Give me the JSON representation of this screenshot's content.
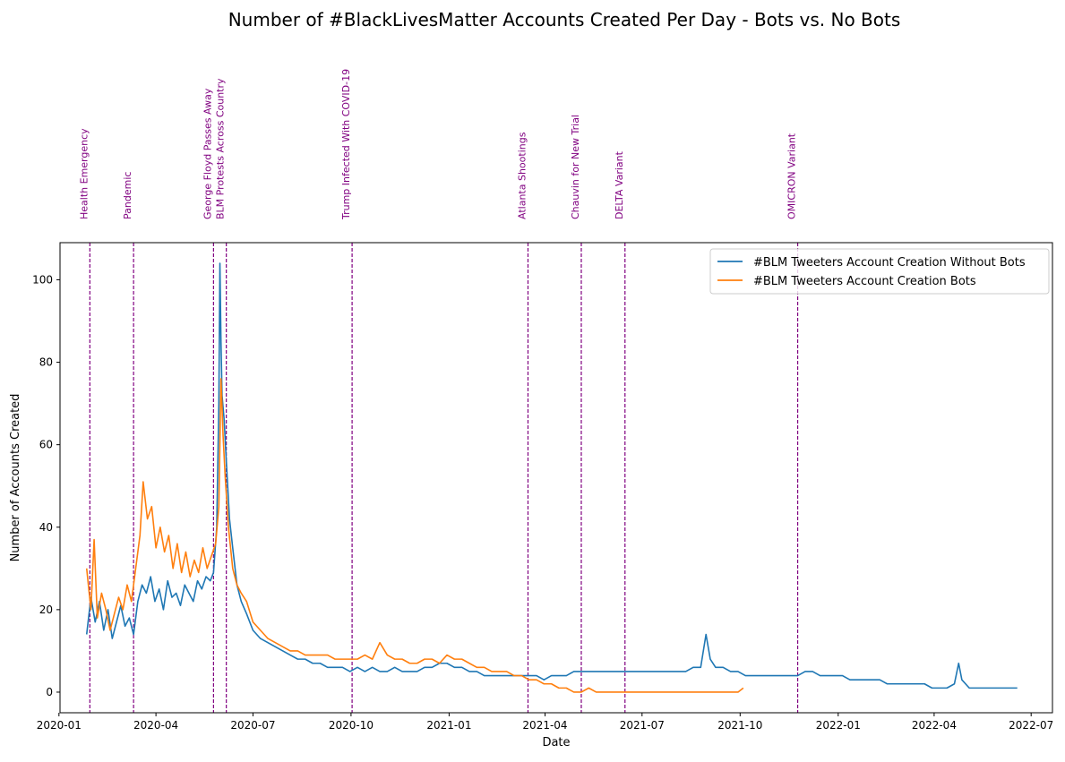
{
  "chart_data": {
    "type": "line",
    "title": "Number of #BlackLivesMatter Accounts Created Per Day - Bots vs. No Bots",
    "xlabel": "Date",
    "ylabel": "Number of Accounts Created",
    "xlim": [
      "2020-01-02",
      "2022-07-21"
    ],
    "ylim": [
      -5,
      109
    ],
    "x_ticks": [
      "2020-01",
      "2020-04",
      "2020-07",
      "2020-10",
      "2021-01",
      "2021-04",
      "2021-07",
      "2021-10",
      "2022-01",
      "2022-04",
      "2022-07"
    ],
    "y_ticks": [
      0,
      20,
      40,
      60,
      80,
      100
    ],
    "grid": false,
    "legend_position": "upper right",
    "events": [
      {
        "date": "2020-01-30",
        "lines": [
          "Health Emergency"
        ]
      },
      {
        "date": "2020-03-11",
        "lines": [
          "Pandemic"
        ]
      },
      {
        "date": "2020-05-25",
        "lines": [
          "George Floyd Passes Away"
        ]
      },
      {
        "date": "2020-06-06",
        "lines": [
          "BLM Protests Across Country"
        ]
      },
      {
        "date": "2020-10-02",
        "lines": [
          "Trump Infected With COVID-19"
        ]
      },
      {
        "date": "2021-03-16",
        "lines": [
          "Atlanta Shootings"
        ]
      },
      {
        "date": "2021-05-05",
        "lines": [
          "Chauvin for New Trial"
        ]
      },
      {
        "date": "2021-06-15",
        "lines": [
          "DELTA Variant"
        ]
      },
      {
        "date": "2021-11-24",
        "lines": [
          "OMICRON Variant"
        ]
      }
    ],
    "series": [
      {
        "name": "#BLM Tweeters Account Creation Without Bots",
        "color": "#1f77b4",
        "points": [
          [
            "2020-01-27",
            14
          ],
          [
            "2020-01-31",
            23
          ],
          [
            "2020-02-04",
            17
          ],
          [
            "2020-02-08",
            22
          ],
          [
            "2020-02-12",
            15
          ],
          [
            "2020-02-16",
            20
          ],
          [
            "2020-02-20",
            13
          ],
          [
            "2020-02-24",
            17
          ],
          [
            "2020-02-28",
            21
          ],
          [
            "2020-03-03",
            16
          ],
          [
            "2020-03-07",
            18
          ],
          [
            "2020-03-11",
            14
          ],
          [
            "2020-03-15",
            22
          ],
          [
            "2020-03-19",
            26
          ],
          [
            "2020-03-23",
            24
          ],
          [
            "2020-03-27",
            28
          ],
          [
            "2020-03-31",
            22
          ],
          [
            "2020-04-04",
            25
          ],
          [
            "2020-04-08",
            20
          ],
          [
            "2020-04-12",
            27
          ],
          [
            "2020-04-16",
            23
          ],
          [
            "2020-04-20",
            24
          ],
          [
            "2020-04-24",
            21
          ],
          [
            "2020-04-28",
            26
          ],
          [
            "2020-05-02",
            24
          ],
          [
            "2020-05-06",
            22
          ],
          [
            "2020-05-10",
            27
          ],
          [
            "2020-05-14",
            25
          ],
          [
            "2020-05-18",
            28
          ],
          [
            "2020-05-22",
            27
          ],
          [
            "2020-05-25",
            29
          ],
          [
            "2020-05-28",
            40
          ],
          [
            "2020-05-30",
            70
          ],
          [
            "2020-05-31",
            104
          ],
          [
            "2020-06-01",
            85
          ],
          [
            "2020-06-02",
            72
          ],
          [
            "2020-06-04",
            66
          ],
          [
            "2020-06-06",
            56
          ],
          [
            "2020-06-09",
            42
          ],
          [
            "2020-06-12",
            35
          ],
          [
            "2020-06-16",
            26
          ],
          [
            "2020-06-20",
            22
          ],
          [
            "2020-06-25",
            19
          ],
          [
            "2020-07-01",
            15
          ],
          [
            "2020-07-08",
            13
          ],
          [
            "2020-07-15",
            12
          ],
          [
            "2020-07-22",
            11
          ],
          [
            "2020-07-29",
            10
          ],
          [
            "2020-08-05",
            9
          ],
          [
            "2020-08-12",
            8
          ],
          [
            "2020-08-19",
            8
          ],
          [
            "2020-08-26",
            7
          ],
          [
            "2020-09-02",
            7
          ],
          [
            "2020-09-09",
            6
          ],
          [
            "2020-09-16",
            6
          ],
          [
            "2020-09-23",
            6
          ],
          [
            "2020-09-30",
            5
          ],
          [
            "2020-10-07",
            6
          ],
          [
            "2020-10-14",
            5
          ],
          [
            "2020-10-21",
            6
          ],
          [
            "2020-10-28",
            5
          ],
          [
            "2020-11-04",
            5
          ],
          [
            "2020-11-11",
            6
          ],
          [
            "2020-11-18",
            5
          ],
          [
            "2020-11-25",
            5
          ],
          [
            "2020-12-02",
            5
          ],
          [
            "2020-12-09",
            6
          ],
          [
            "2020-12-16",
            6
          ],
          [
            "2020-12-23",
            7
          ],
          [
            "2020-12-30",
            7
          ],
          [
            "2021-01-06",
            6
          ],
          [
            "2021-01-13",
            6
          ],
          [
            "2021-01-20",
            5
          ],
          [
            "2021-01-27",
            5
          ],
          [
            "2021-02-03",
            4
          ],
          [
            "2021-02-10",
            4
          ],
          [
            "2021-02-17",
            4
          ],
          [
            "2021-02-24",
            4
          ],
          [
            "2021-03-03",
            4
          ],
          [
            "2021-03-10",
            4
          ],
          [
            "2021-03-17",
            4
          ],
          [
            "2021-03-24",
            4
          ],
          [
            "2021-03-31",
            3
          ],
          [
            "2021-04-07",
            4
          ],
          [
            "2021-04-14",
            4
          ],
          [
            "2021-04-21",
            4
          ],
          [
            "2021-04-28",
            5
          ],
          [
            "2021-05-05",
            5
          ],
          [
            "2021-05-12",
            5
          ],
          [
            "2021-05-19",
            5
          ],
          [
            "2021-05-26",
            5
          ],
          [
            "2021-06-02",
            5
          ],
          [
            "2021-06-09",
            5
          ],
          [
            "2021-06-16",
            5
          ],
          [
            "2021-06-23",
            5
          ],
          [
            "2021-06-30",
            5
          ],
          [
            "2021-07-07",
            5
          ],
          [
            "2021-07-14",
            5
          ],
          [
            "2021-07-21",
            5
          ],
          [
            "2021-07-28",
            5
          ],
          [
            "2021-08-04",
            5
          ],
          [
            "2021-08-11",
            5
          ],
          [
            "2021-08-18",
            6
          ],
          [
            "2021-08-25",
            6
          ],
          [
            "2021-08-30",
            14
          ],
          [
            "2021-09-03",
            8
          ],
          [
            "2021-09-08",
            6
          ],
          [
            "2021-09-15",
            6
          ],
          [
            "2021-09-22",
            5
          ],
          [
            "2021-09-29",
            5
          ],
          [
            "2021-10-06",
            4
          ],
          [
            "2021-10-13",
            4
          ],
          [
            "2021-10-20",
            4
          ],
          [
            "2021-10-27",
            4
          ],
          [
            "2021-11-03",
            4
          ],
          [
            "2021-11-10",
            4
          ],
          [
            "2021-11-17",
            4
          ],
          [
            "2021-11-24",
            4
          ],
          [
            "2021-12-01",
            5
          ],
          [
            "2021-12-08",
            5
          ],
          [
            "2021-12-15",
            4
          ],
          [
            "2021-12-22",
            4
          ],
          [
            "2021-12-29",
            4
          ],
          [
            "2022-01-05",
            4
          ],
          [
            "2022-01-12",
            3
          ],
          [
            "2022-01-19",
            3
          ],
          [
            "2022-01-26",
            3
          ],
          [
            "2022-02-02",
            3
          ],
          [
            "2022-02-09",
            3
          ],
          [
            "2022-02-16",
            2
          ],
          [
            "2022-02-23",
            2
          ],
          [
            "2022-03-02",
            2
          ],
          [
            "2022-03-09",
            2
          ],
          [
            "2022-03-16",
            2
          ],
          [
            "2022-03-23",
            2
          ],
          [
            "2022-03-30",
            1
          ],
          [
            "2022-04-06",
            1
          ],
          [
            "2022-04-13",
            1
          ],
          [
            "2022-04-20",
            2
          ],
          [
            "2022-04-24",
            7
          ],
          [
            "2022-04-27",
            3
          ],
          [
            "2022-05-04",
            1
          ],
          [
            "2022-05-11",
            1
          ],
          [
            "2022-05-18",
            1
          ],
          [
            "2022-05-25",
            1
          ],
          [
            "2022-06-01",
            1
          ],
          [
            "2022-06-08",
            1
          ],
          [
            "2022-06-15",
            1
          ],
          [
            "2022-06-18",
            1
          ]
        ]
      },
      {
        "name": "#BLM Tweeters Account Creation Bots",
        "color": "#ff7f0e",
        "points": [
          [
            "2020-01-27",
            30
          ],
          [
            "2020-01-31",
            20
          ],
          [
            "2020-02-03",
            37
          ],
          [
            "2020-02-06",
            18
          ],
          [
            "2020-02-10",
            24
          ],
          [
            "2020-02-14",
            20
          ],
          [
            "2020-02-18",
            15
          ],
          [
            "2020-02-22",
            19
          ],
          [
            "2020-02-26",
            23
          ],
          [
            "2020-03-01",
            20
          ],
          [
            "2020-03-05",
            26
          ],
          [
            "2020-03-09",
            22
          ],
          [
            "2020-03-13",
            30
          ],
          [
            "2020-03-17",
            38
          ],
          [
            "2020-03-20",
            51
          ],
          [
            "2020-03-24",
            42
          ],
          [
            "2020-03-28",
            45
          ],
          [
            "2020-04-01",
            35
          ],
          [
            "2020-04-05",
            40
          ],
          [
            "2020-04-09",
            34
          ],
          [
            "2020-04-13",
            38
          ],
          [
            "2020-04-17",
            30
          ],
          [
            "2020-04-21",
            36
          ],
          [
            "2020-04-25",
            29
          ],
          [
            "2020-04-29",
            34
          ],
          [
            "2020-05-03",
            28
          ],
          [
            "2020-05-07",
            32
          ],
          [
            "2020-05-11",
            29
          ],
          [
            "2020-05-15",
            35
          ],
          [
            "2020-05-19",
            30
          ],
          [
            "2020-05-23",
            33
          ],
          [
            "2020-05-27",
            36
          ],
          [
            "2020-05-30",
            45
          ],
          [
            "2020-06-01",
            76
          ],
          [
            "2020-06-03",
            62
          ],
          [
            "2020-06-05",
            52
          ],
          [
            "2020-06-08",
            40
          ],
          [
            "2020-06-12",
            30
          ],
          [
            "2020-06-16",
            26
          ],
          [
            "2020-06-20",
            24
          ],
          [
            "2020-06-25",
            22
          ],
          [
            "2020-07-01",
            17
          ],
          [
            "2020-07-08",
            15
          ],
          [
            "2020-07-15",
            13
          ],
          [
            "2020-07-22",
            12
          ],
          [
            "2020-07-29",
            11
          ],
          [
            "2020-08-05",
            10
          ],
          [
            "2020-08-12",
            10
          ],
          [
            "2020-08-19",
            9
          ],
          [
            "2020-08-26",
            9
          ],
          [
            "2020-09-02",
            9
          ],
          [
            "2020-09-09",
            9
          ],
          [
            "2020-09-16",
            8
          ],
          [
            "2020-09-23",
            8
          ],
          [
            "2020-09-30",
            8
          ],
          [
            "2020-10-07",
            8
          ],
          [
            "2020-10-14",
            9
          ],
          [
            "2020-10-21",
            8
          ],
          [
            "2020-10-28",
            12
          ],
          [
            "2020-11-04",
            9
          ],
          [
            "2020-11-11",
            8
          ],
          [
            "2020-11-18",
            8
          ],
          [
            "2020-11-25",
            7
          ],
          [
            "2020-12-02",
            7
          ],
          [
            "2020-12-09",
            8
          ],
          [
            "2020-12-16",
            8
          ],
          [
            "2020-12-23",
            7
          ],
          [
            "2020-12-30",
            9
          ],
          [
            "2021-01-06",
            8
          ],
          [
            "2021-01-13",
            8
          ],
          [
            "2021-01-20",
            7
          ],
          [
            "2021-01-27",
            6
          ],
          [
            "2021-02-03",
            6
          ],
          [
            "2021-02-10",
            5
          ],
          [
            "2021-02-17",
            5
          ],
          [
            "2021-02-24",
            5
          ],
          [
            "2021-03-03",
            4
          ],
          [
            "2021-03-10",
            4
          ],
          [
            "2021-03-17",
            3
          ],
          [
            "2021-03-24",
            3
          ],
          [
            "2021-03-31",
            2
          ],
          [
            "2021-04-07",
            2
          ],
          [
            "2021-04-14",
            1
          ],
          [
            "2021-04-21",
            1
          ],
          [
            "2021-04-28",
            0
          ],
          [
            "2021-05-05",
            0
          ],
          [
            "2021-05-12",
            1
          ],
          [
            "2021-05-19",
            0
          ],
          [
            "2021-05-26",
            0
          ],
          [
            "2021-06-02",
            0
          ],
          [
            "2021-06-09",
            0
          ],
          [
            "2021-06-16",
            0
          ],
          [
            "2021-06-23",
            0
          ],
          [
            "2021-06-30",
            0
          ],
          [
            "2021-07-07",
            0
          ],
          [
            "2021-07-14",
            0
          ],
          [
            "2021-07-21",
            0
          ],
          [
            "2021-07-28",
            0
          ],
          [
            "2021-08-04",
            0
          ],
          [
            "2021-08-11",
            0
          ],
          [
            "2021-08-18",
            0
          ],
          [
            "2021-08-25",
            0
          ],
          [
            "2021-09-01",
            0
          ],
          [
            "2021-09-08",
            0
          ],
          [
            "2021-09-15",
            0
          ],
          [
            "2021-09-22",
            0
          ],
          [
            "2021-09-29",
            0
          ],
          [
            "2021-10-04",
            1
          ]
        ]
      }
    ]
  }
}
